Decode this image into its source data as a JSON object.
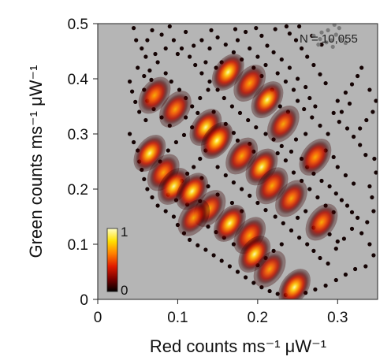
{
  "chart_data": {
    "type": "scatter",
    "title": "",
    "xlabel": "Red counts ms⁻¹ μW⁻¹",
    "ylabel": "Green counts ms⁻¹ μW⁻¹",
    "xlim": [
      0,
      0.35
    ],
    "ylim": [
      0,
      0.5
    ],
    "xticks": [
      "0",
      "0.1",
      "0.2",
      "0.3"
    ],
    "yticks": [
      "0",
      "0.1",
      "0.2",
      "0.3",
      "0.4",
      "0.5"
    ],
    "annotation": "N = 10,055",
    "colorbar": {
      "min_label": "0",
      "max_label": "1",
      "colors": [
        "#000000",
        "#7a0000",
        "#e01b00",
        "#ff7f00",
        "#ffe000",
        "#ffffc8"
      ]
    },
    "background_color": "#b5b5b5",
    "grid": false,
    "clusters": [
      {
        "x": 0.071,
        "y": 0.37,
        "peak": 0.75
      },
      {
        "x": 0.097,
        "y": 0.345,
        "peak": 0.65
      },
      {
        "x": 0.135,
        "y": 0.312,
        "peak": 0.8
      },
      {
        "x": 0.149,
        "y": 0.288,
        "peak": 0.95
      },
      {
        "x": 0.163,
        "y": 0.412,
        "peak": 0.9
      },
      {
        "x": 0.19,
        "y": 0.392,
        "peak": 0.7
      },
      {
        "x": 0.212,
        "y": 0.362,
        "peak": 0.8
      },
      {
        "x": 0.232,
        "y": 0.318,
        "peak": 0.65
      },
      {
        "x": 0.065,
        "y": 0.265,
        "peak": 0.85
      },
      {
        "x": 0.082,
        "y": 0.23,
        "peak": 0.7
      },
      {
        "x": 0.095,
        "y": 0.205,
        "peak": 0.8
      },
      {
        "x": 0.118,
        "y": 0.196,
        "peak": 0.85
      },
      {
        "x": 0.14,
        "y": 0.165,
        "peak": 0.6
      },
      {
        "x": 0.12,
        "y": 0.148,
        "peak": 0.55
      },
      {
        "x": 0.18,
        "y": 0.26,
        "peak": 0.7
      },
      {
        "x": 0.205,
        "y": 0.24,
        "peak": 0.8
      },
      {
        "x": 0.218,
        "y": 0.206,
        "peak": 0.75
      },
      {
        "x": 0.242,
        "y": 0.183,
        "peak": 0.65
      },
      {
        "x": 0.272,
        "y": 0.258,
        "peak": 0.75
      },
      {
        "x": 0.165,
        "y": 0.138,
        "peak": 0.9
      },
      {
        "x": 0.19,
        "y": 0.116,
        "peak": 0.75
      },
      {
        "x": 0.196,
        "y": 0.082,
        "peak": 0.85
      },
      {
        "x": 0.215,
        "y": 0.055,
        "peak": 0.6
      },
      {
        "x": 0.28,
        "y": 0.14,
        "peak": 0.7
      },
      {
        "x": 0.246,
        "y": 0.022,
        "peak": 0.9
      }
    ],
    "sparse_points": [
      [
        0.045,
        0.492
      ],
      [
        0.048,
        0.47
      ],
      [
        0.055,
        0.455
      ],
      [
        0.06,
        0.44
      ],
      [
        0.05,
        0.42
      ],
      [
        0.058,
        0.405
      ],
      [
        0.067,
        0.398
      ],
      [
        0.075,
        0.43
      ],
      [
        0.085,
        0.41
      ],
      [
        0.092,
        0.395
      ],
      [
        0.102,
        0.38
      ],
      [
        0.11,
        0.365
      ],
      [
        0.118,
        0.35
      ],
      [
        0.125,
        0.338
      ],
      [
        0.08,
        0.48
      ],
      [
        0.095,
        0.47
      ],
      [
        0.105,
        0.455
      ],
      [
        0.115,
        0.44
      ],
      [
        0.122,
        0.425
      ],
      [
        0.13,
        0.41
      ],
      [
        0.14,
        0.395
      ],
      [
        0.15,
        0.38
      ],
      [
        0.158,
        0.365
      ],
      [
        0.168,
        0.35
      ],
      [
        0.178,
        0.338
      ],
      [
        0.188,
        0.325
      ],
      [
        0.198,
        0.312
      ],
      [
        0.21,
        0.3
      ],
      [
        0.22,
        0.29
      ],
      [
        0.23,
        0.278
      ],
      [
        0.242,
        0.268
      ],
      [
        0.255,
        0.255
      ],
      [
        0.262,
        0.24
      ],
      [
        0.27,
        0.228
      ],
      [
        0.28,
        0.215
      ],
      [
        0.29,
        0.205
      ],
      [
        0.298,
        0.192
      ],
      [
        0.305,
        0.18
      ],
      [
        0.312,
        0.17
      ],
      [
        0.318,
        0.158
      ],
      [
        0.325,
        0.148
      ],
      [
        0.3,
        0.24
      ],
      [
        0.31,
        0.225
      ],
      [
        0.32,
        0.21
      ],
      [
        0.285,
        0.27
      ],
      [
        0.295,
        0.258
      ],
      [
        0.26,
        0.3
      ],
      [
        0.248,
        0.29
      ],
      [
        0.238,
        0.34
      ],
      [
        0.228,
        0.35
      ],
      [
        0.218,
        0.38
      ],
      [
        0.205,
        0.405
      ],
      [
        0.195,
        0.42
      ],
      [
        0.18,
        0.435
      ],
      [
        0.17,
        0.448
      ],
      [
        0.16,
        0.462
      ],
      [
        0.15,
        0.475
      ],
      [
        0.142,
        0.488
      ],
      [
        0.175,
        0.47
      ],
      [
        0.19,
        0.455
      ],
      [
        0.2,
        0.44
      ],
      [
        0.21,
        0.425
      ],
      [
        0.225,
        0.41
      ],
      [
        0.235,
        0.395
      ],
      [
        0.245,
        0.38
      ],
      [
        0.25,
        0.36
      ],
      [
        0.258,
        0.345
      ],
      [
        0.268,
        0.33
      ],
      [
        0.278,
        0.315
      ],
      [
        0.288,
        0.3
      ],
      [
        0.04,
        0.3
      ],
      [
        0.045,
        0.285
      ],
      [
        0.05,
        0.27
      ],
      [
        0.052,
        0.25
      ],
      [
        0.055,
        0.235
      ],
      [
        0.058,
        0.218
      ],
      [
        0.062,
        0.2
      ],
      [
        0.068,
        0.185
      ],
      [
        0.075,
        0.17
      ],
      [
        0.085,
        0.16
      ],
      [
        0.095,
        0.15
      ],
      [
        0.1,
        0.135
      ],
      [
        0.108,
        0.12
      ],
      [
        0.115,
        0.108
      ],
      [
        0.125,
        0.098
      ],
      [
        0.135,
        0.09
      ],
      [
        0.145,
        0.08
      ],
      [
        0.155,
        0.07
      ],
      [
        0.165,
        0.06
      ],
      [
        0.175,
        0.05
      ],
      [
        0.185,
        0.04
      ],
      [
        0.195,
        0.03
      ],
      [
        0.205,
        0.022
      ],
      [
        0.215,
        0.015
      ],
      [
        0.225,
        0.01
      ],
      [
        0.235,
        0.008
      ],
      [
        0.26,
        0.012
      ],
      [
        0.272,
        0.018
      ],
      [
        0.285,
        0.025
      ],
      [
        0.298,
        0.035
      ],
      [
        0.31,
        0.045
      ],
      [
        0.322,
        0.055
      ],
      [
        0.335,
        0.06
      ],
      [
        0.345,
        0.08
      ],
      [
        0.34,
        0.1
      ],
      [
        0.33,
        0.12
      ],
      [
        0.337,
        0.14
      ],
      [
        0.345,
        0.16
      ],
      [
        0.343,
        0.185
      ],
      [
        0.34,
        0.205
      ],
      [
        0.348,
        0.23
      ],
      [
        0.346,
        0.255
      ],
      [
        0.335,
        0.262
      ],
      [
        0.328,
        0.28
      ],
      [
        0.32,
        0.295
      ],
      [
        0.312,
        0.31
      ],
      [
        0.302,
        0.322
      ],
      [
        0.295,
        0.338
      ],
      [
        0.3,
        0.36
      ],
      [
        0.31,
        0.375
      ],
      [
        0.318,
        0.39
      ],
      [
        0.325,
        0.405
      ],
      [
        0.33,
        0.42
      ],
      [
        0.285,
        0.392
      ],
      [
        0.278,
        0.408
      ],
      [
        0.27,
        0.425
      ],
      [
        0.262,
        0.44
      ],
      [
        0.255,
        0.455
      ],
      [
        0.248,
        0.47
      ],
      [
        0.24,
        0.482
      ],
      [
        0.252,
        0.495
      ],
      [
        0.268,
        0.478
      ],
      [
        0.28,
        0.462
      ],
      [
        0.135,
        0.27
      ],
      [
        0.128,
        0.255
      ],
      [
        0.12,
        0.24
      ],
      [
        0.112,
        0.228
      ],
      [
        0.105,
        0.215
      ],
      [
        0.15,
        0.24
      ],
      [
        0.16,
        0.225
      ],
      [
        0.17,
        0.212
      ],
      [
        0.18,
        0.2
      ],
      [
        0.19,
        0.188
      ],
      [
        0.2,
        0.175
      ],
      [
        0.21,
        0.162
      ],
      [
        0.222,
        0.15
      ],
      [
        0.232,
        0.138
      ],
      [
        0.242,
        0.125
      ],
      [
        0.252,
        0.112
      ],
      [
        0.262,
        0.1
      ],
      [
        0.27,
        0.088
      ],
      [
        0.278,
        0.075
      ],
      [
        0.288,
        0.065
      ],
      [
        0.298,
        0.092
      ],
      [
        0.308,
        0.11
      ],
      [
        0.318,
        0.128
      ],
      [
        0.23,
        0.1
      ],
      [
        0.22,
        0.088
      ],
      [
        0.21,
        0.075
      ],
      [
        0.2,
        0.062
      ],
      [
        0.17,
        0.1
      ],
      [
        0.158,
        0.112
      ],
      [
        0.148,
        0.122
      ],
      [
        0.138,
        0.132
      ],
      [
        0.128,
        0.178
      ],
      [
        0.112,
        0.172
      ],
      [
        0.098,
        0.18
      ],
      [
        0.088,
        0.19
      ],
      [
        0.078,
        0.25
      ],
      [
        0.088,
        0.27
      ],
      [
        0.098,
        0.285
      ],
      [
        0.108,
        0.298
      ],
      [
        0.118,
        0.312
      ],
      [
        0.09,
        0.315
      ],
      [
        0.08,
        0.33
      ],
      [
        0.07,
        0.345
      ],
      [
        0.062,
        0.36
      ],
      [
        0.058,
        0.38
      ],
      [
        0.11,
        0.33
      ],
      [
        0.128,
        0.365
      ],
      [
        0.138,
        0.38
      ],
      [
        0.145,
        0.34
      ],
      [
        0.16,
        0.318
      ],
      [
        0.17,
        0.302
      ],
      [
        0.175,
        0.288
      ],
      [
        0.19,
        0.282
      ],
      [
        0.195,
        0.268
      ],
      [
        0.225,
        0.265
      ],
      [
        0.235,
        0.252
      ],
      [
        0.245,
        0.23
      ],
      [
        0.255,
        0.215
      ],
      [
        0.265,
        0.2
      ],
      [
        0.275,
        0.185
      ],
      [
        0.285,
        0.17
      ],
      [
        0.295,
        0.158
      ],
      [
        0.26,
        0.16
      ],
      [
        0.25,
        0.148
      ],
      [
        0.27,
        0.13
      ],
      [
        0.29,
        0.118
      ],
      [
        0.3,
        0.105
      ],
      [
        0.18,
        0.16
      ],
      [
        0.168,
        0.175
      ],
      [
        0.15,
        0.19
      ],
      [
        0.138,
        0.205
      ],
      [
        0.13,
        0.22
      ],
      [
        0.06,
        0.325
      ],
      [
        0.052,
        0.34
      ],
      [
        0.047,
        0.358
      ],
      [
        0.043,
        0.377
      ],
      [
        0.04,
        0.395
      ],
      [
        0.065,
        0.415
      ],
      [
        0.072,
        0.445
      ],
      [
        0.062,
        0.47
      ],
      [
        0.068,
        0.488
      ],
      [
        0.09,
        0.495
      ],
      [
        0.11,
        0.485
      ],
      [
        0.13,
        0.47
      ],
      [
        0.14,
        0.455
      ],
      [
        0.12,
        0.46
      ],
      [
        0.1,
        0.445
      ],
      [
        0.085,
        0.455
      ],
      [
        0.155,
        0.43
      ],
      [
        0.148,
        0.42
      ],
      [
        0.135,
        0.43
      ],
      [
        0.328,
        0.31
      ],
      [
        0.336,
        0.325
      ],
      [
        0.344,
        0.34
      ],
      [
        0.348,
        0.36
      ],
      [
        0.34,
        0.38
      ],
      [
        0.305,
        0.34
      ],
      [
        0.315,
        0.355
      ],
      [
        0.272,
        0.35
      ],
      [
        0.265,
        0.365
      ],
      [
        0.26,
        0.385
      ],
      [
        0.25,
        0.4
      ],
      [
        0.24,
        0.42
      ],
      [
        0.23,
        0.435
      ],
      [
        0.22,
        0.448
      ],
      [
        0.212,
        0.46
      ],
      [
        0.205,
        0.478
      ],
      [
        0.222,
        0.49
      ],
      [
        0.236,
        0.495
      ],
      [
        0.198,
        0.492
      ],
      [
        0.185,
        0.485
      ],
      [
        0.172,
        0.49
      ]
    ],
    "grey_points": [
      [
        0.27,
        0.478
      ],
      [
        0.278,
        0.472
      ],
      [
        0.286,
        0.466
      ],
      [
        0.292,
        0.47
      ],
      [
        0.298,
        0.48
      ],
      [
        0.302,
        0.492
      ],
      [
        0.296,
        0.498
      ],
      [
        0.288,
        0.488
      ],
      [
        0.28,
        0.484
      ],
      [
        0.304,
        0.472
      ],
      [
        0.31,
        0.465
      ],
      [
        0.276,
        0.462
      ],
      [
        0.294,
        0.458
      ]
    ]
  }
}
